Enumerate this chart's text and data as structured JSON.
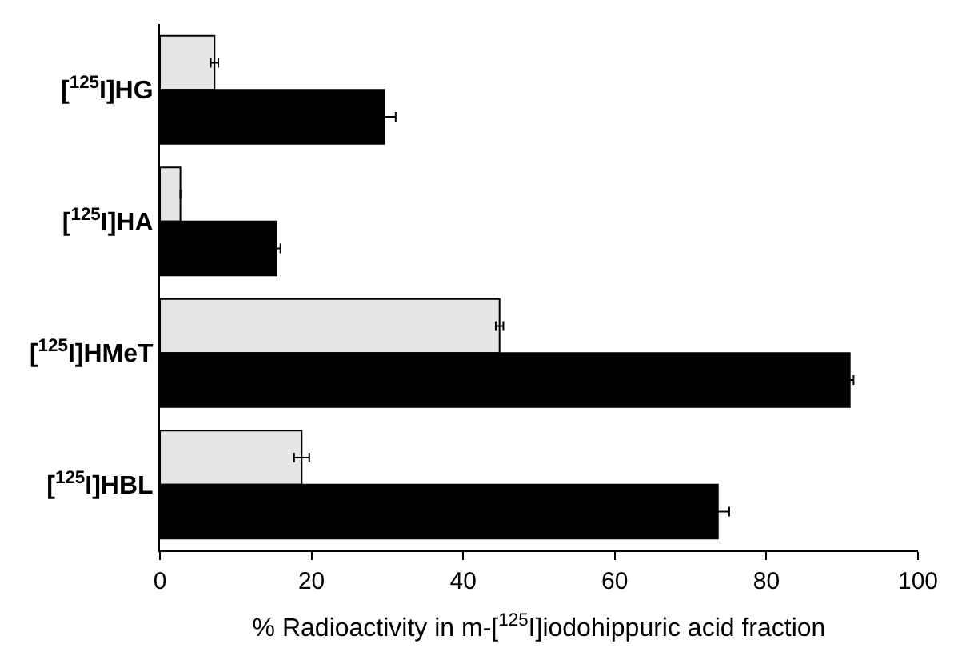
{
  "chart_data": {
    "type": "bar",
    "orientation": "horizontal",
    "xlabel": "% Radioactivity in m-[$^{125}$I]iodohippuric acid fraction",
    "categories": [
      "[$^{125}$I]HG",
      "[$^{125}$I]HA",
      "[$^{125}$I]HMeT",
      "[$^{125}$I]HBL"
    ],
    "series": [
      {
        "color": "#e6e6e6",
        "values": [
          7.2,
          2.7,
          44.8,
          18.7
        ],
        "errors": [
          0.5,
          null,
          0.5,
          1.0
        ]
      },
      {
        "color": "#000000",
        "values": [
          29.6,
          15.4,
          91.0,
          73.6
        ],
        "errors": [
          1.5,
          0.5,
          0.5,
          1.5
        ]
      }
    ],
    "xlim": [
      0,
      100
    ],
    "xticks": [
      0,
      20,
      40,
      60,
      80,
      100
    ],
    "legend": false
  }
}
